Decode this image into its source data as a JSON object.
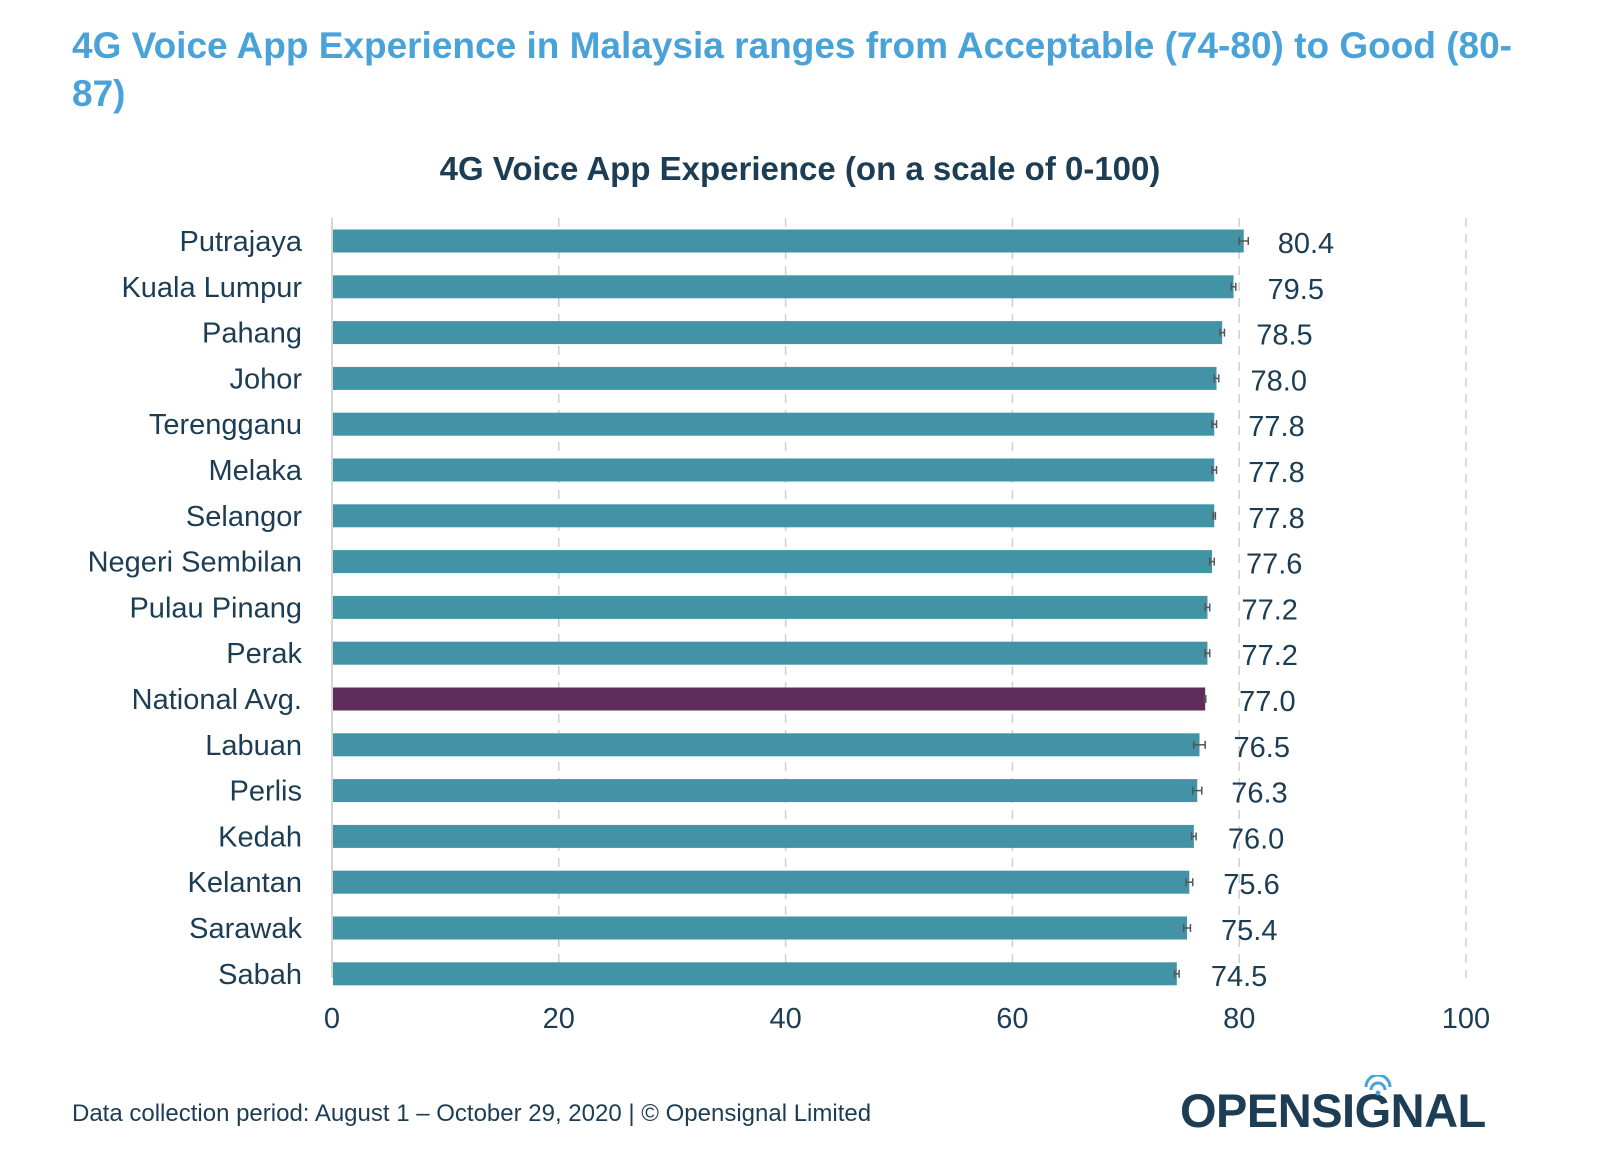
{
  "headline": "4G Voice App Experience in Malaysia ranges from Acceptable (74-80) to Good (80-87)",
  "footer": "Data collection period: August 1 – October 29, 2020 | © Opensignal Limited",
  "logo": {
    "text": "OPENSIGNAL",
    "icon": "signal-waves-icon"
  },
  "colors": {
    "bar": "#4393a6",
    "highlight": "#5e2d5c",
    "text": "#1c3d54",
    "title": "#4aa3d8",
    "grid": "#d0d0d0"
  },
  "chart_data": {
    "type": "bar",
    "orientation": "horizontal",
    "title": "4G Voice App Experience (on a scale of 0-100)",
    "categories": [
      "Putrajaya",
      "Kuala Lumpur",
      "Pahang",
      "Johor",
      "Terengganu",
      "Melaka",
      "Selangor",
      "Negeri Sembilan",
      "Pulau Pinang",
      "Perak",
      "National Avg.",
      "Labuan",
      "Perlis",
      "Kedah",
      "Kelantan",
      "Sarawak",
      "Sabah"
    ],
    "values": [
      80.4,
      79.5,
      78.5,
      78.0,
      77.8,
      77.8,
      77.8,
      77.6,
      77.2,
      77.2,
      77.0,
      76.5,
      76.3,
      76.0,
      75.6,
      75.4,
      74.5
    ],
    "value_labels": [
      "80.4",
      "79.5",
      "78.5",
      "78.0",
      "77.8",
      "77.8",
      "77.8",
      "77.6",
      "77.2",
      "77.2",
      "77.0",
      "76.5",
      "76.3",
      "76.0",
      "75.6",
      "75.4",
      "74.5"
    ],
    "error_bars": [
      0.4,
      0.2,
      0.2,
      0.2,
      0.2,
      0.2,
      0.1,
      0.2,
      0.2,
      0.2,
      0.05,
      0.5,
      0.4,
      0.2,
      0.3,
      0.3,
      0.2
    ],
    "highlight": "National Avg.",
    "xlim": [
      0,
      100
    ],
    "xticks": [
      0,
      20,
      40,
      60,
      80,
      100
    ],
    "grid": "vertical dashed"
  }
}
